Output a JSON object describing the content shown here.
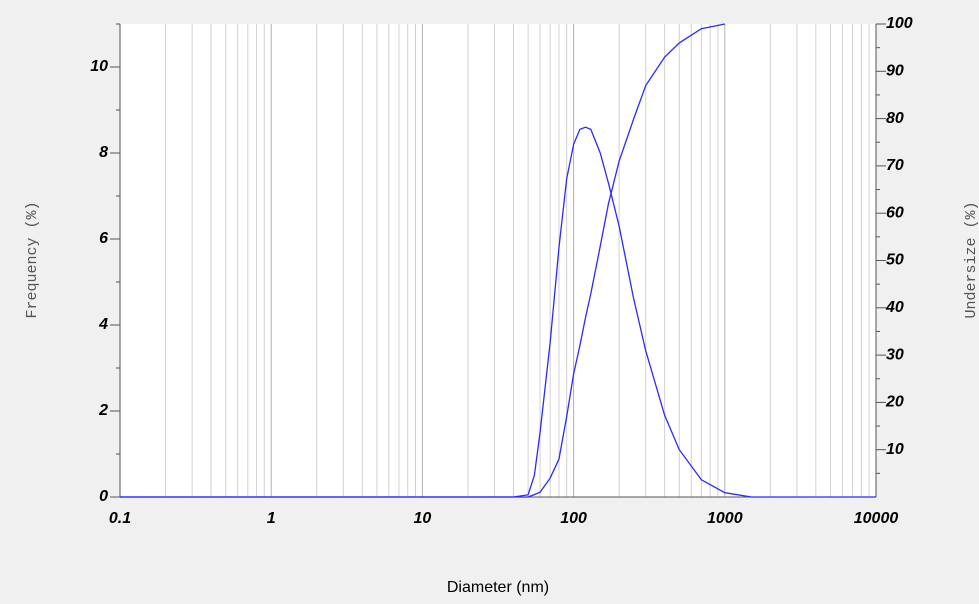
{
  "chart_data": {
    "type": "line",
    "x_label": "Diameter (nm)",
    "y_label": "Frequency (%)",
    "y2_label": "Undersize (%)",
    "log_x": true,
    "grid": true,
    "x": [
      0.1,
      0.2,
      40,
      50,
      55,
      60,
      70,
      80,
      90,
      100,
      110,
      120,
      130,
      150,
      170,
      200,
      250,
      300,
      400,
      500,
      700,
      1000,
      1500,
      10000
    ],
    "series": [
      {
        "name": "Frequency",
        "color": "#2a2aff",
        "values": [
          0,
          0,
          0,
          0.05,
          0.5,
          1.5,
          3.6,
          5.8,
          7.4,
          8.2,
          8.55,
          8.6,
          8.55,
          8.0,
          7.3,
          6.3,
          4.6,
          3.4,
          1.9,
          1.1,
          0.4,
          0.1,
          0,
          0
        ]
      },
      {
        "name": "Undersize",
        "color": "#2a2aff",
        "axis": "y2",
        "values": [
          0,
          0,
          0,
          0,
          0.5,
          1,
          4,
          8,
          17,
          26,
          32,
          38,
          43,
          53,
          62,
          71,
          80,
          87,
          93,
          96,
          99,
          100,
          null,
          null
        ]
      }
    ],
    "xlim": [
      0.1,
      10000
    ],
    "xticks": [
      0.1,
      1,
      10,
      100,
      1000,
      10000
    ],
    "ylim": [
      0,
      11
    ],
    "yticks": [
      0,
      2,
      4,
      6,
      8,
      10
    ],
    "y2lim": [
      0,
      100
    ],
    "y2ticks": [
      10,
      20,
      30,
      40,
      50,
      60,
      70,
      80,
      90,
      100
    ]
  }
}
